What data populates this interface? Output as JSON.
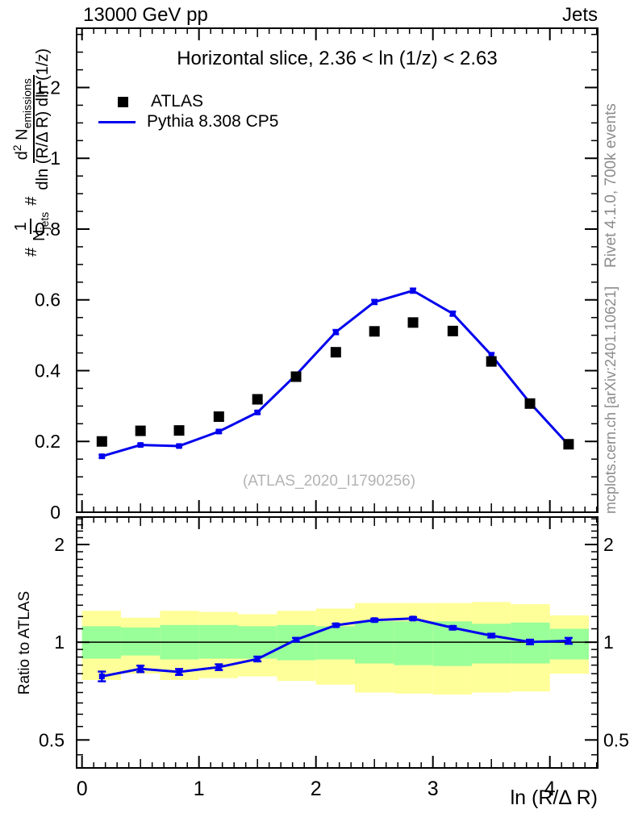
{
  "header": {
    "left": "13000 GeV pp",
    "right": "Jets"
  },
  "title": "Horizontal slice, 2.36 < ln (1/z) < 2.63",
  "watermark": "(ATLAS_2020_I1790256)",
  "side_notes": {
    "top_right": "Rivet 4.1.0,  700k events",
    "bottom_right": "mcplots.cern.ch [arXiv:2401.10621]"
  },
  "legend": [
    {
      "label": "ATLAS",
      "marker": "black-square"
    },
    {
      "label": "Pythia 8.308 CP5",
      "marker": "blue-line"
    }
  ],
  "formula": {
    "hash1": "#",
    "f1_num": "1",
    "f1_den": "N",
    "f1_den_sub": "jets",
    "hash2": "#",
    "f2_num_d": "d",
    "f2_num_sup": "2",
    "f2_num_N": " N",
    "f2_num_sub": "emissions",
    "f2_den": "dln (R/Δ R) dln (1/z)"
  },
  "colors": {
    "line_blue": "#0000ee",
    "band_yellow": "#ffff99",
    "band_green": "#99ff99",
    "marker_black": "#000000",
    "gray_text": "#8c8c8c"
  },
  "chart_data": {
    "type": "line",
    "title": "Horizontal slice, 2.36 < ln (1/z) < 2.63",
    "xlabel": "ln (R/Δ R)",
    "ylabel": "# 1/N_jets # d^2 N_emissions / dln (R/Δ R) dln (1/z)",
    "ratio_ylabel": "Ratio to ATLAS",
    "xlim": [
      -0.046,
      4.409
    ],
    "main_ylim": [
      0,
      1.3675
    ],
    "ratio_ylim": [
      0.41,
      2.43
    ],
    "ratio_scale": "log",
    "grid": false,
    "x": [
      0.17,
      0.5,
      0.83,
      1.17,
      1.5,
      1.83,
      2.17,
      2.5,
      2.83,
      3.17,
      3.5,
      3.83,
      4.16
    ],
    "series": [
      {
        "name": "ATLAS",
        "style": "scatter",
        "marker": "square",
        "color": "#000000",
        "values": [
          0.2,
          0.23,
          0.231,
          0.27,
          0.319,
          0.383,
          0.452,
          0.511,
          0.536,
          0.512,
          0.426,
          0.307,
          0.192
        ]
      },
      {
        "name": "Pythia 8.308 CP5",
        "style": "line-marker",
        "color": "#0000ee",
        "values": [
          0.158,
          0.19,
          0.187,
          0.228,
          0.282,
          0.388,
          0.509,
          0.594,
          0.626,
          0.561,
          0.444,
          0.309,
          0.19
        ],
        "errors": [
          0.004,
          0.003,
          0.003,
          0.004,
          0.004,
          0.005,
          0.006,
          0.006,
          0.006,
          0.006,
          0.006,
          0.005,
          0.005
        ]
      }
    ],
    "ratio": {
      "name": "Pythia/ATLAS",
      "values": [
        0.785,
        0.828,
        0.81,
        0.838,
        0.888,
        1.018,
        1.128,
        1.17,
        1.183,
        1.108,
        1.048,
        1.002,
        1.01
      ],
      "errors": [
        0.027,
        0.019,
        0.017,
        0.017,
        0.015,
        0.013,
        0.012,
        0.012,
        0.012,
        0.013,
        0.014,
        0.016,
        0.021
      ],
      "reference_line": 1.0
    },
    "bands": {
      "edges": [
        0,
        0.333,
        0.667,
        1.0,
        1.333,
        1.667,
        2.0,
        2.333,
        2.667,
        3.0,
        3.333,
        3.667,
        4.0,
        4.333
      ],
      "yellow_hi": [
        1.25,
        1.19,
        1.25,
        1.24,
        1.22,
        1.25,
        1.27,
        1.32,
        1.32,
        1.32,
        1.33,
        1.31,
        1.21
      ],
      "green_hi": [
        1.12,
        1.11,
        1.13,
        1.13,
        1.12,
        1.13,
        1.12,
        1.16,
        1.16,
        1.16,
        1.14,
        1.15,
        1.1
      ],
      "green_lo": [
        0.89,
        0.91,
        0.885,
        0.89,
        0.89,
        0.88,
        0.885,
        0.86,
        0.85,
        0.845,
        0.86,
        0.86,
        0.885
      ],
      "yellow_lo": [
        0.765,
        0.8,
        0.765,
        0.775,
        0.785,
        0.76,
        0.74,
        0.7,
        0.695,
        0.69,
        0.7,
        0.705,
        0.8
      ]
    },
    "x_ticks": {
      "major": [
        0,
        1,
        2,
        3,
        4
      ],
      "labels": [
        "0",
        "1",
        "2",
        "3",
        "4"
      ],
      "medium_step": 0.5,
      "minor_step": 0.1
    },
    "main_y_ticks": {
      "major": [
        0,
        0.2,
        0.4,
        0.6,
        0.8,
        1.0,
        1.2
      ],
      "labels": [
        "0",
        "0.2",
        "0.4",
        "0.6",
        "0.8",
        "1",
        "1.2"
      ],
      "minor_step": 0.05
    },
    "ratio_y_ticks": {
      "major": [
        0.5,
        1,
        2
      ],
      "labels": [
        "0.5",
        "1",
        "2"
      ],
      "minors": [
        0.45,
        0.55,
        0.6,
        0.65,
        0.7,
        0.75,
        0.8,
        0.85,
        0.9,
        0.95,
        1.1,
        1.2,
        1.3,
        1.4,
        1.5,
        1.6,
        1.7,
        1.8,
        1.9,
        2.1,
        2.2,
        2.3,
        2.4
      ]
    }
  }
}
